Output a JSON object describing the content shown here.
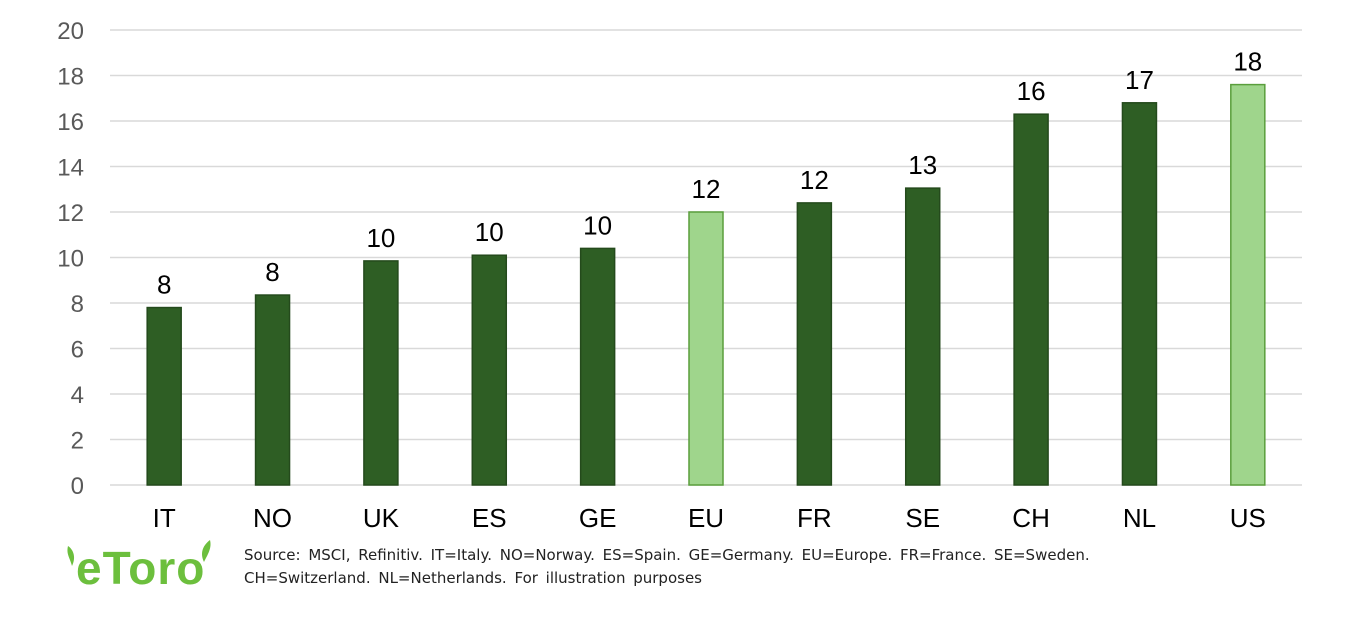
{
  "chart_data": {
    "type": "bar",
    "title": "",
    "xlabel": "",
    "ylabel": "",
    "ylim": [
      0,
      20
    ],
    "yticks": [
      0,
      2,
      4,
      6,
      8,
      10,
      12,
      14,
      16,
      18,
      20
    ],
    "grid": true,
    "categories": [
      "IT",
      "NO",
      "UK",
      "ES",
      "GE",
      "EU",
      "FR",
      "SE",
      "CH",
      "NL",
      "US"
    ],
    "values": [
      7.8,
      8.35,
      9.85,
      10.1,
      10.4,
      12.0,
      12.4,
      13.05,
      16.3,
      16.8,
      17.6
    ],
    "data_labels": [
      "8",
      "8",
      "10",
      "10",
      "10",
      "12",
      "12",
      "13",
      "16",
      "17",
      "18"
    ],
    "highlight": [
      false,
      false,
      false,
      false,
      false,
      true,
      false,
      false,
      false,
      false,
      true
    ],
    "colors": {
      "bar": "#2e5e24",
      "bar_highlight": "#9fd58c",
      "bar_highlight_border": "#5a9e3c",
      "grid": "#d9d9d9"
    }
  },
  "footer": {
    "logo_text": "eToro",
    "source_line1": "Source: MSCI, Refinitiv. IT=Italy. NO=Norway. ES=Spain. GE=Germany. EU=Europe. FR=France. SE=Sweden.",
    "source_line2": "CH=Switzerland. NL=Netherlands. For illustration purposes"
  }
}
